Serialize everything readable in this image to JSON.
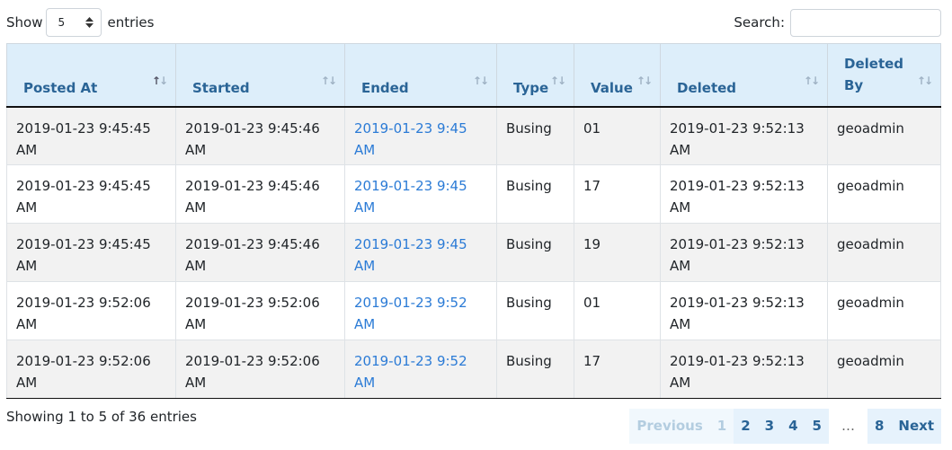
{
  "length": {
    "label_show": "Show",
    "value": "5",
    "label_entries": "entries"
  },
  "search": {
    "label": "Search:",
    "value": ""
  },
  "columns": [
    "Posted At",
    "Started",
    "Ended",
    "Type",
    "Value",
    "Deleted",
    "Deleted By"
  ],
  "sort": {
    "column": "Posted At",
    "direction": "ascending"
  },
  "rows": [
    [
      "2019-01-23 9:45:45 AM",
      "2019-01-23 9:45:46 AM",
      "2019-01-23 9:45 AM",
      "Busing",
      "01",
      "2019-01-23 9:52:13 AM",
      "geoadmin"
    ],
    [
      "2019-01-23 9:45:45 AM",
      "2019-01-23 9:45:46 AM",
      "2019-01-23 9:45 AM",
      "Busing",
      "17",
      "2019-01-23 9:52:13 AM",
      "geoadmin"
    ],
    [
      "2019-01-23 9:45:45 AM",
      "2019-01-23 9:45:46 AM",
      "2019-01-23 9:45 AM",
      "Busing",
      "19",
      "2019-01-23 9:52:13 AM",
      "geoadmin"
    ],
    [
      "2019-01-23 9:52:06 AM",
      "2019-01-23 9:52:06 AM",
      "2019-01-23 9:52 AM",
      "Busing",
      "01",
      "2019-01-23 9:52:13 AM",
      "geoadmin"
    ],
    [
      "2019-01-23 9:52:06 AM",
      "2019-01-23 9:52:06 AM",
      "2019-01-23 9:52 AM",
      "Busing",
      "17",
      "2019-01-23 9:52:13 AM",
      "geoadmin"
    ]
  ],
  "info": "Showing 1 to 5 of 36 entries",
  "pagination": {
    "previous": "Previous",
    "pages": [
      "1",
      "2",
      "3",
      "4",
      "5"
    ],
    "ellipsis": "…",
    "last": "8",
    "next": "Next",
    "current": "1"
  },
  "colors": {
    "header_bg": "#ddeefa",
    "header_text": "#2a6496",
    "link": "#2b7bd6"
  }
}
